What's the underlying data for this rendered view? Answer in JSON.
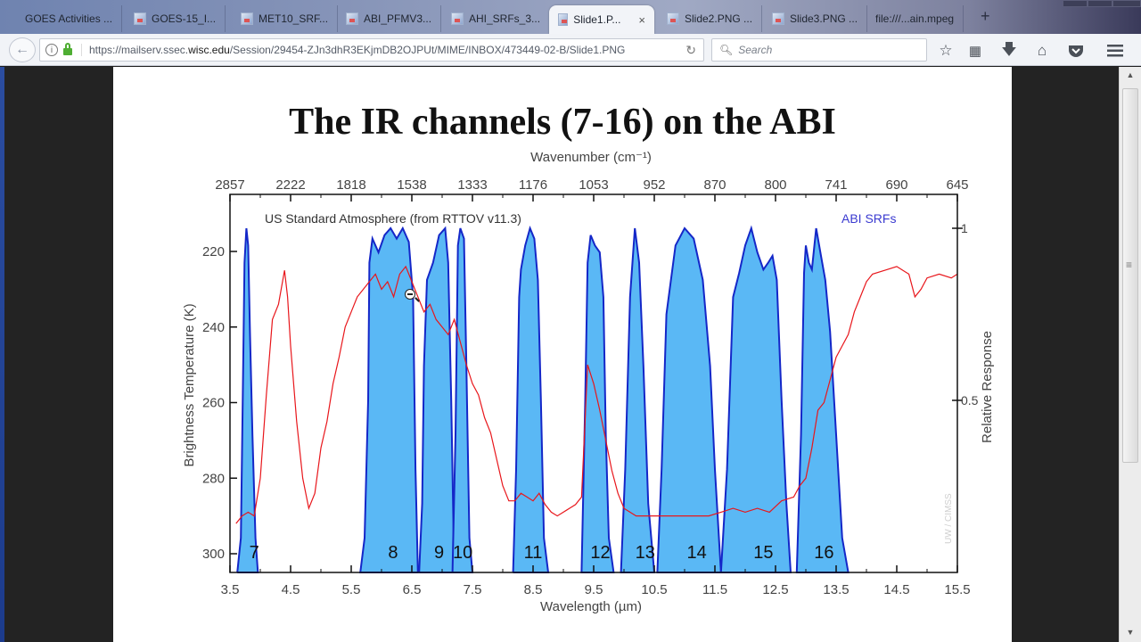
{
  "browser": {
    "tabs": [
      {
        "label": "GOES Activities ...",
        "active": false,
        "has_icon": false
      },
      {
        "label": "GOES-15_I...",
        "active": false,
        "has_icon": true
      },
      {
        "label": "MET10_SRF...",
        "active": false,
        "has_icon": true
      },
      {
        "label": "ABI_PFMV3...",
        "active": false,
        "has_icon": true
      },
      {
        "label": "AHI_SRFs_3...",
        "active": false,
        "has_icon": true
      },
      {
        "label": "Slide1.P...",
        "active": true,
        "has_icon": true
      },
      {
        "label": "Slide2.PNG ...",
        "active": false,
        "has_icon": true
      },
      {
        "label": "Slide3.PNG ...",
        "active": false,
        "has_icon": true
      },
      {
        "label": "file:///...ain.mpeg",
        "active": false,
        "has_icon": false
      }
    ],
    "new_tab_label": "+",
    "close_tab_label": "×",
    "url_prefix": "https://mailserv.ssec.",
    "url_domain": "wisc.edu",
    "url_path": "/Session/29454-ZJn3dhR3EKjmDB2OJPUt/MIME/INBOX/473449-02-B/Slide1.PNG",
    "search_placeholder": "Search",
    "toolbar_icons": [
      "star-icon",
      "reading-list-icon",
      "download-icon",
      "home-icon",
      "pocket-icon",
      "menu-icon"
    ]
  },
  "slide": {
    "title": "The IR channels (7-16) on the ABI"
  },
  "chart_data": {
    "type": "area",
    "title": "The IR channels (7-16) on the ABI",
    "xlabel": "Wavelength (µm)",
    "x2label": "Wavenumber (cm⁻¹)",
    "ylabel": "Brightness Temperature (K)",
    "y2label": "Relative Response",
    "xlim": [
      3.5,
      15.5
    ],
    "ylim": [
      305,
      212
    ],
    "y2lim": [
      0,
      1.1
    ],
    "x_ticks": [
      "3.5",
      "4.5",
      "5.5",
      "6.5",
      "7.5",
      "8.5",
      "9.5",
      "10.5",
      "11.5",
      "12.5",
      "13.5",
      "14.5",
      "15.5"
    ],
    "x2_ticks": [
      "2857",
      "2222",
      "1818",
      "1538",
      "1333",
      "1176",
      "1053",
      "952",
      "870",
      "800",
      "741",
      "690",
      "645"
    ],
    "y_ticks": [
      "220",
      "240",
      "260",
      "280",
      "300"
    ],
    "y2_ticks": [
      "1",
      "0.5"
    ],
    "annotations": {
      "atmosphere_label": "US Standard Atmosphere (from RTTOV v11.3)",
      "srf_label": "ABI SRFs",
      "credit": "UW / CIMSS"
    },
    "colors": {
      "srf_fill": "#5ab8f5",
      "srf_line": "#1427c8",
      "bt_line": "#e8161b",
      "srf_label": "#3a3ad0"
    },
    "legend_position": "inside-top",
    "grid": false,
    "series": [
      {
        "name": "Band 7",
        "label": "7",
        "center_um": 3.9,
        "points": [
          [
            3.62,
            0
          ],
          [
            3.68,
            0.1
          ],
          [
            3.71,
            0.5
          ],
          [
            3.74,
            0.9
          ],
          [
            3.77,
            1.0
          ],
          [
            3.8,
            0.95
          ],
          [
            3.83,
            0.7
          ],
          [
            3.87,
            0.4
          ],
          [
            3.92,
            0.1
          ],
          [
            3.96,
            0
          ]
        ]
      },
      {
        "name": "Band 8",
        "label": "8",
        "center_um": 6.19,
        "points": [
          [
            5.65,
            0
          ],
          [
            5.72,
            0.1
          ],
          [
            5.78,
            0.5
          ],
          [
            5.8,
            0.9
          ],
          [
            5.85,
            0.97
          ],
          [
            5.95,
            0.93
          ],
          [
            6.05,
            0.98
          ],
          [
            6.15,
            1.0
          ],
          [
            6.25,
            0.97
          ],
          [
            6.35,
            1.0
          ],
          [
            6.45,
            0.96
          ],
          [
            6.52,
            0.8
          ],
          [
            6.56,
            0.3
          ],
          [
            6.6,
            0
          ]
        ]
      },
      {
        "name": "Band 9",
        "label": "9",
        "center_um": 6.95,
        "points": [
          [
            6.62,
            0
          ],
          [
            6.67,
            0.2
          ],
          [
            6.7,
            0.6
          ],
          [
            6.75,
            0.85
          ],
          [
            6.85,
            0.9
          ],
          [
            6.95,
            0.98
          ],
          [
            7.05,
            1.0
          ],
          [
            7.1,
            0.9
          ],
          [
            7.15,
            0.5
          ],
          [
            7.2,
            0
          ]
        ]
      },
      {
        "name": "Band 10",
        "label": "10",
        "center_um": 7.34,
        "points": [
          [
            7.17,
            0
          ],
          [
            7.22,
            0.4
          ],
          [
            7.26,
            0.95
          ],
          [
            7.3,
            1.0
          ],
          [
            7.36,
            0.97
          ],
          [
            7.4,
            0.6
          ],
          [
            7.45,
            0.1
          ],
          [
            7.5,
            0
          ]
        ]
      },
      {
        "name": "Band 11",
        "label": "11",
        "center_um": 8.5,
        "points": [
          [
            8.17,
            0
          ],
          [
            8.22,
            0.3
          ],
          [
            8.27,
            0.8
          ],
          [
            8.3,
            0.88
          ],
          [
            8.37,
            0.95
          ],
          [
            8.45,
            1.0
          ],
          [
            8.52,
            0.97
          ],
          [
            8.58,
            0.85
          ],
          [
            8.63,
            0.5
          ],
          [
            8.68,
            0.1
          ],
          [
            8.75,
            0
          ]
        ]
      },
      {
        "name": "Band 12",
        "label": "12",
        "center_um": 9.61,
        "points": [
          [
            9.3,
            0
          ],
          [
            9.36,
            0.5
          ],
          [
            9.4,
            0.9
          ],
          [
            9.45,
            0.98
          ],
          [
            9.52,
            0.95
          ],
          [
            9.6,
            0.93
          ],
          [
            9.66,
            0.8
          ],
          [
            9.7,
            0.4
          ],
          [
            9.75,
            0.1
          ],
          [
            9.83,
            0
          ]
        ]
      },
      {
        "name": "Band 13",
        "label": "13",
        "center_um": 10.35,
        "points": [
          [
            9.95,
            0
          ],
          [
            10.02,
            0.3
          ],
          [
            10.1,
            0.8
          ],
          [
            10.18,
            1.0
          ],
          [
            10.25,
            0.9
          ],
          [
            10.32,
            0.6
          ],
          [
            10.4,
            0.2
          ],
          [
            10.5,
            0
          ]
        ]
      },
      {
        "name": "Band 14",
        "label": "14",
        "center_um": 11.2,
        "points": [
          [
            10.55,
            0
          ],
          [
            10.62,
            0.3
          ],
          [
            10.7,
            0.75
          ],
          [
            10.85,
            0.95
          ],
          [
            11.0,
            1.0
          ],
          [
            11.15,
            0.97
          ],
          [
            11.3,
            0.85
          ],
          [
            11.42,
            0.6
          ],
          [
            11.5,
            0.3
          ],
          [
            11.6,
            0
          ]
        ]
      },
      {
        "name": "Band 15",
        "label": "15",
        "center_um": 12.3,
        "points": [
          [
            11.6,
            0
          ],
          [
            11.7,
            0.3
          ],
          [
            11.8,
            0.8
          ],
          [
            11.9,
            0.87
          ],
          [
            12.0,
            0.95
          ],
          [
            12.1,
            1.0
          ],
          [
            12.2,
            0.93
          ],
          [
            12.3,
            0.88
          ],
          [
            12.38,
            0.9
          ],
          [
            12.45,
            0.92
          ],
          [
            12.52,
            0.85
          ],
          [
            12.6,
            0.5
          ],
          [
            12.68,
            0.2
          ],
          [
            12.75,
            0
          ]
        ]
      },
      {
        "name": "Band 16",
        "label": "16",
        "center_um": 13.3,
        "points": [
          [
            12.85,
            0
          ],
          [
            12.92,
            0.4
          ],
          [
            12.97,
            0.87
          ],
          [
            13.0,
            0.95
          ],
          [
            13.05,
            0.9
          ],
          [
            13.1,
            0.88
          ],
          [
            13.17,
            1.0
          ],
          [
            13.25,
            0.92
          ],
          [
            13.32,
            0.85
          ],
          [
            13.4,
            0.7
          ],
          [
            13.5,
            0.4
          ],
          [
            13.6,
            0.1
          ],
          [
            13.7,
            0
          ]
        ]
      },
      {
        "name": "Brightness Temperature (US Std Atm)",
        "axis": "left",
        "points": [
          [
            3.6,
            292
          ],
          [
            3.7,
            290
          ],
          [
            3.8,
            289
          ],
          [
            3.9,
            290
          ],
          [
            4.0,
            280
          ],
          [
            4.1,
            258
          ],
          [
            4.2,
            238
          ],
          [
            4.3,
            234
          ],
          [
            4.4,
            225
          ],
          [
            4.45,
            232
          ],
          [
            4.5,
            245
          ],
          [
            4.6,
            265
          ],
          [
            4.7,
            280
          ],
          [
            4.8,
            288
          ],
          [
            4.9,
            284
          ],
          [
            5.0,
            272
          ],
          [
            5.1,
            265
          ],
          [
            5.2,
            255
          ],
          [
            5.3,
            248
          ],
          [
            5.4,
            240
          ],
          [
            5.5,
            236
          ],
          [
            5.6,
            232
          ],
          [
            5.7,
            230
          ],
          [
            5.8,
            228
          ],
          [
            5.9,
            226
          ],
          [
            6.0,
            230
          ],
          [
            6.1,
            228
          ],
          [
            6.2,
            232
          ],
          [
            6.3,
            226
          ],
          [
            6.4,
            224
          ],
          [
            6.5,
            228
          ],
          [
            6.6,
            232
          ],
          [
            6.7,
            236
          ],
          [
            6.8,
            234
          ],
          [
            6.9,
            238
          ],
          [
            7.0,
            240
          ],
          [
            7.1,
            242
          ],
          [
            7.2,
            238
          ],
          [
            7.3,
            244
          ],
          [
            7.4,
            250
          ],
          [
            7.5,
            255
          ],
          [
            7.6,
            258
          ],
          [
            7.7,
            264
          ],
          [
            7.8,
            268
          ],
          [
            7.9,
            275
          ],
          [
            8.0,
            282
          ],
          [
            8.1,
            286
          ],
          [
            8.2,
            286
          ],
          [
            8.3,
            284
          ],
          [
            8.4,
            285
          ],
          [
            8.5,
            286
          ],
          [
            8.6,
            284
          ],
          [
            8.7,
            287
          ],
          [
            8.8,
            289
          ],
          [
            8.9,
            290
          ],
          [
            9.0,
            289
          ],
          [
            9.1,
            288
          ],
          [
            9.2,
            287
          ],
          [
            9.3,
            285
          ],
          [
            9.4,
            250
          ],
          [
            9.5,
            255
          ],
          [
            9.6,
            262
          ],
          [
            9.7,
            270
          ],
          [
            9.8,
            278
          ],
          [
            9.9,
            284
          ],
          [
            10.0,
            288
          ],
          [
            10.2,
            290
          ],
          [
            10.4,
            290
          ],
          [
            10.6,
            290
          ],
          [
            10.8,
            290
          ],
          [
            11.0,
            290
          ],
          [
            11.2,
            290
          ],
          [
            11.4,
            290
          ],
          [
            11.6,
            289
          ],
          [
            11.8,
            288
          ],
          [
            12.0,
            289
          ],
          [
            12.2,
            288
          ],
          [
            12.4,
            289
          ],
          [
            12.6,
            286
          ],
          [
            12.8,
            285
          ],
          [
            12.9,
            282
          ],
          [
            13.0,
            280
          ],
          [
            13.1,
            272
          ],
          [
            13.2,
            262
          ],
          [
            13.3,
            260
          ],
          [
            13.4,
            254
          ],
          [
            13.5,
            248
          ],
          [
            13.6,
            245
          ],
          [
            13.7,
            242
          ],
          [
            13.8,
            236
          ],
          [
            13.9,
            232
          ],
          [
            14.0,
            228
          ],
          [
            14.1,
            226
          ],
          [
            14.3,
            225
          ],
          [
            14.5,
            224
          ],
          [
            14.7,
            226
          ],
          [
            14.8,
            232
          ],
          [
            14.9,
            230
          ],
          [
            15.0,
            227
          ],
          [
            15.2,
            226
          ],
          [
            15.4,
            227
          ],
          [
            15.5,
            226
          ]
        ]
      }
    ]
  }
}
